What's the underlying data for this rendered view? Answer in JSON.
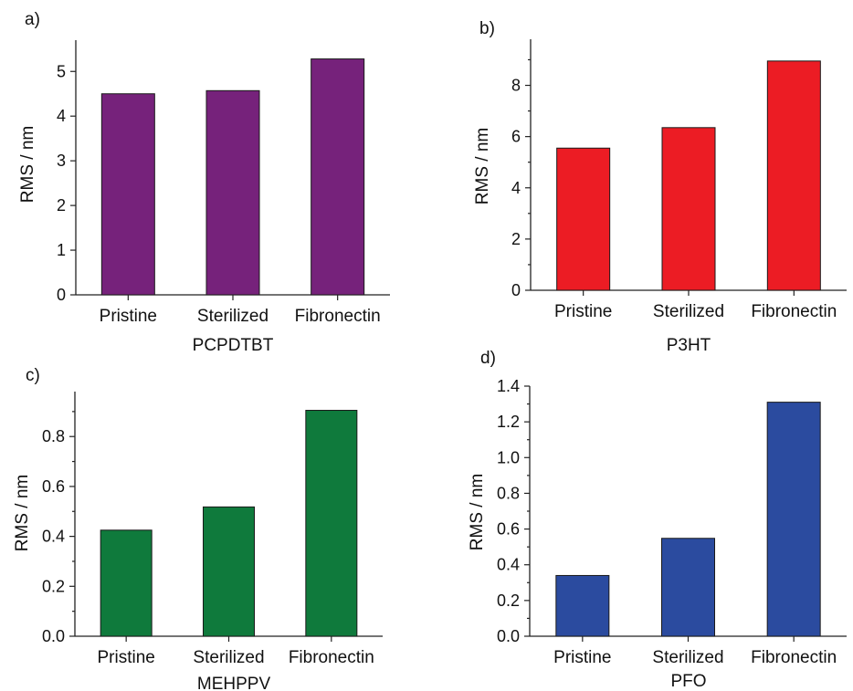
{
  "chart_data": [
    {
      "panel": "a)",
      "type": "bar",
      "categories": [
        "Pristine",
        "Sterilized",
        "Fibronectin"
      ],
      "values": [
        4.5,
        4.57,
        5.28
      ],
      "xlabel": "PCPDTBT",
      "ylabel": "RMS / nm",
      "ylim": [
        0,
        5.7
      ],
      "yticks": [
        "0",
        "1",
        "2",
        "3",
        "4",
        "5"
      ],
      "color": "#76227b",
      "grid": false
    },
    {
      "panel": "b)",
      "type": "bar",
      "categories": [
        "Pristine",
        "Sterilized",
        "Fibronectin"
      ],
      "values": [
        5.55,
        6.35,
        8.95
      ],
      "xlabel": "P3HT",
      "ylabel": "RMS / nm",
      "ylim": [
        0,
        9.8
      ],
      "yticks": [
        "0",
        "2",
        "4",
        "6",
        "8"
      ],
      "color": "#ec1c24",
      "grid": false
    },
    {
      "panel": "c)",
      "type": "bar",
      "categories": [
        "Pristine",
        "Sterilized",
        "Fibronectin"
      ],
      "values": [
        0.425,
        0.518,
        0.905
      ],
      "xlabel": "MEHPPV",
      "ylabel": "RMS / nm",
      "ylim": [
        0,
        0.98
      ],
      "yticks": [
        "0.0",
        "0.2",
        "0.4",
        "0.6",
        "0.8"
      ],
      "color": "#0f7a3c",
      "grid": false
    },
    {
      "panel": "d)",
      "type": "bar",
      "categories": [
        "Pristine",
        "Sterilized",
        "Fibronectin"
      ],
      "values": [
        0.34,
        0.548,
        1.31
      ],
      "xlabel": "PFO",
      "ylabel": "RMS / nm",
      "ylim": [
        0,
        1.4
      ],
      "yticks": [
        "0.0",
        "0.2",
        "0.4",
        "0.6",
        "0.8",
        "1.0",
        "1.2",
        "1.4"
      ],
      "color": "#2b4b9f",
      "grid": false
    }
  ]
}
